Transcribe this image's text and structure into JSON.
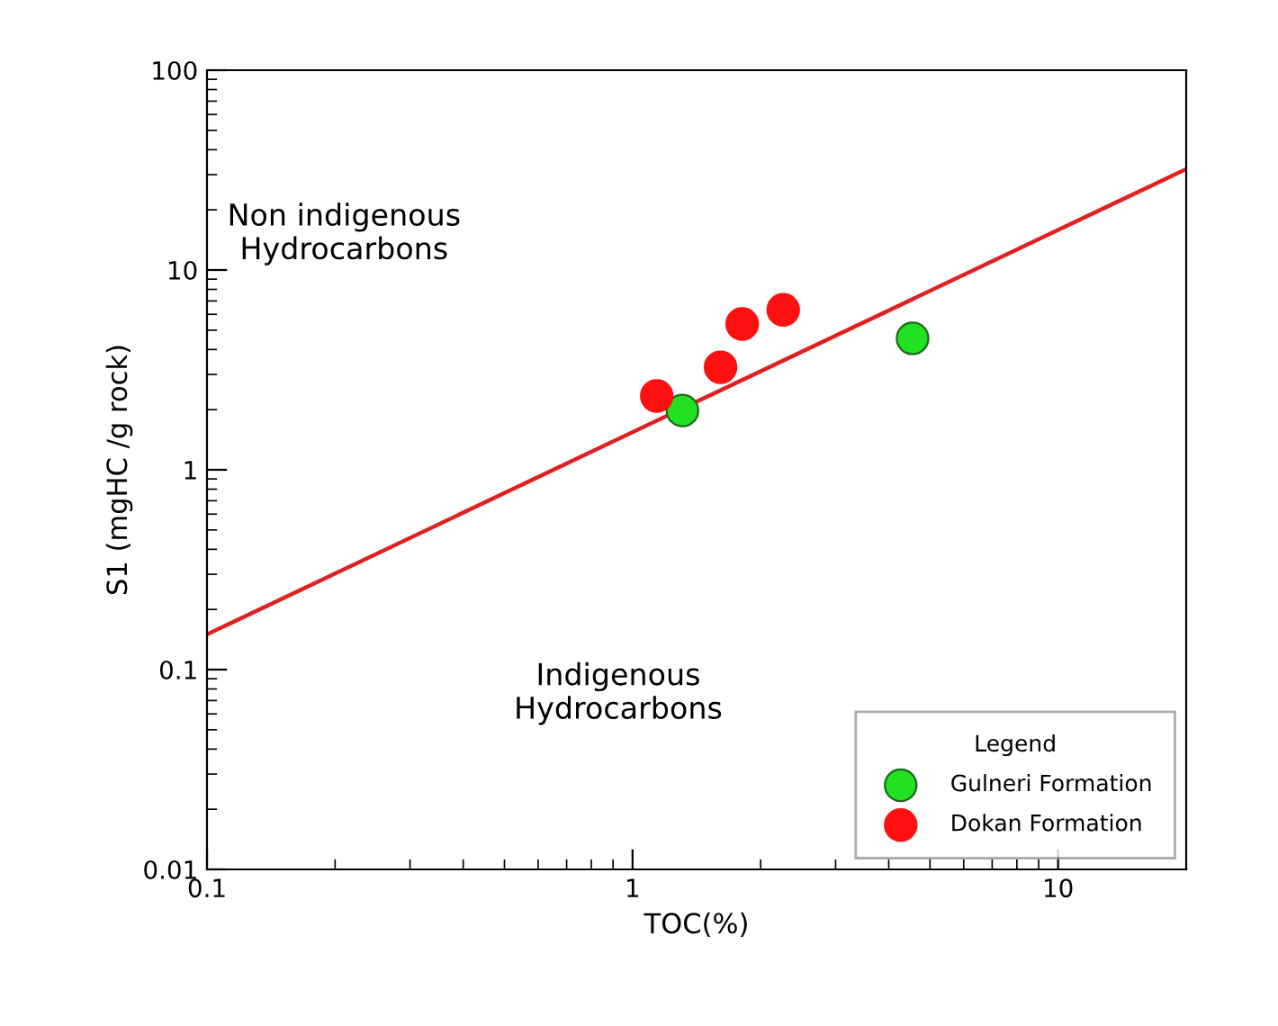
{
  "chart_data": {
    "type": "scatter",
    "xlabel": "TOC(%)",
    "ylabel": "S1 (mgHC /g rock)",
    "log": "xy",
    "xlim": [
      0.1,
      20
    ],
    "ylim": [
      0.01,
      100
    ],
    "xticks": [
      0.1,
      1,
      10
    ],
    "yticks": [
      0.01,
      0.1,
      1,
      10,
      100
    ],
    "grid": false,
    "legend": "bottom right",
    "legend_title": "Legend",
    "marker": "circle",
    "series": [
      {
        "type": "line",
        "color": "#e02020",
        "x": [
          0.1,
          20
        ],
        "values": [
          0.15,
          32
        ],
        "line_style": "solid",
        "marker": "none"
      },
      {
        "name": "Gulneri Formation",
        "color": "#22e022",
        "x": [
          1.31,
          4.55
        ],
        "values": [
          1.98,
          4.55
        ]
      },
      {
        "name": "Dokan Formation",
        "color": "#ff1010",
        "x": [
          1.14,
          1.61,
          1.81,
          2.26
        ],
        "values": [
          2.34,
          3.26,
          5.37,
          6.32
        ]
      }
    ],
    "annotations": [
      "Non indigenous\nHydrocarbons",
      "Indigenous\nHydrocarbons"
    ]
  }
}
